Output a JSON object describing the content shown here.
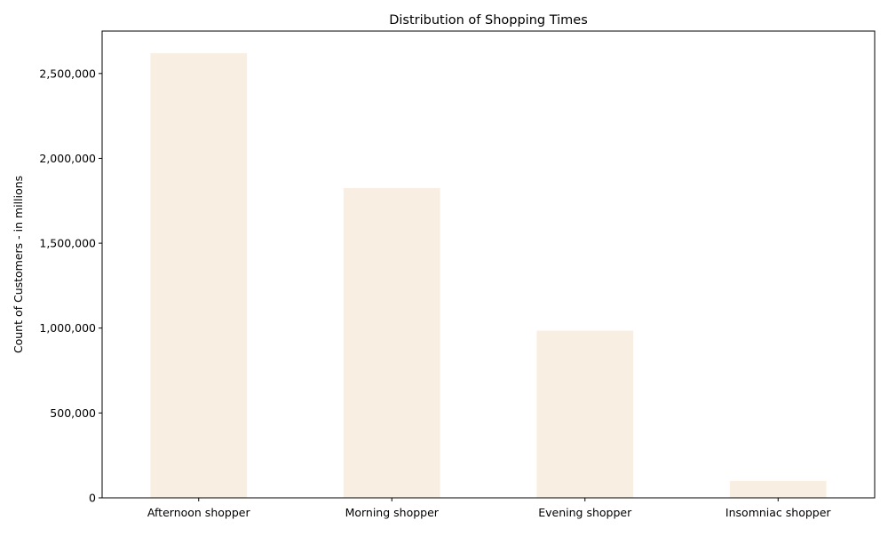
{
  "chart_data": {
    "type": "bar",
    "title": "Distribution of Shopping Times",
    "xlabel": "",
    "ylabel": "Count of Customers - in millions",
    "categories": [
      "Afternoon shopper",
      "Morning shopper",
      "Evening shopper",
      "Insomniac shopper"
    ],
    "values": [
      2620000,
      1825000,
      985000,
      100000
    ],
    "ylim": [
      0,
      2750000
    ],
    "yticks": [
      0,
      500000,
      1000000,
      1500000,
      2000000,
      2500000
    ],
    "ytick_labels": [
      "0",
      "500,000",
      "1,000,000",
      "1,500,000",
      "2,000,000",
      "2,500,000"
    ],
    "bar_color": "#f8efe2",
    "grid": false,
    "legend": "none"
  }
}
